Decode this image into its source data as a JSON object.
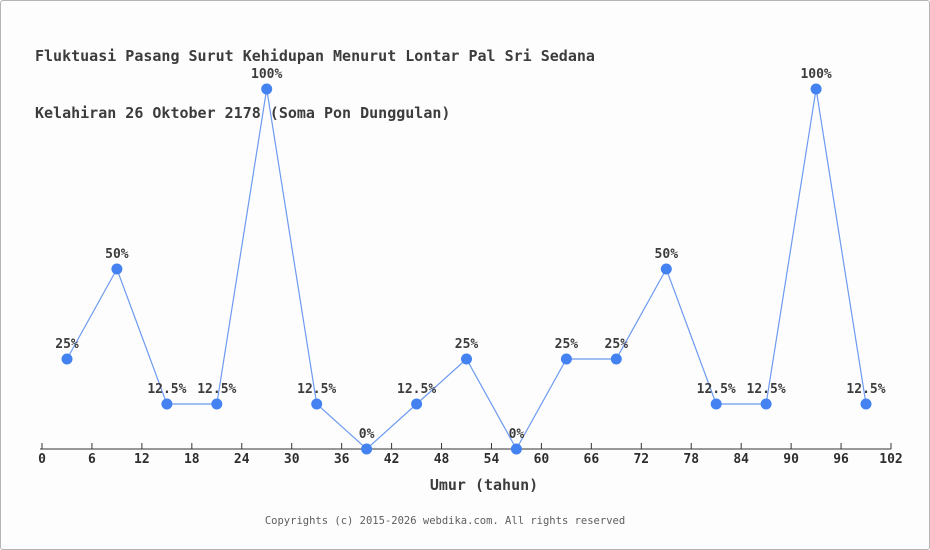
{
  "title": {
    "line1": "Fluktuasi Pasang Surut Kehidupan Menurut Lontar Pal Sri Sedana",
    "line2": "Kelahiran 26 Oktober 2178 (Soma Pon Dunggulan)"
  },
  "footer": {
    "copyright": "Copyrights (c) 2015-2026 webdika.com. All rights reserved"
  },
  "colors": {
    "marker": "#4382f0",
    "line": "#6d9af0",
    "axis": "#333333",
    "tick_text": "#2e2e2e",
    "label_text": "#3c3c3c",
    "title_text": "#3c3c3c",
    "footer_text": "#5e5e5e",
    "background": "#fdfdfd",
    "border": "#b5b5b5"
  },
  "chart_data": {
    "type": "line",
    "title": "Fluktuasi Pasang Surut Kehidupan Menurut Lontar Pal Sri Sedana — Kelahiran 26 Oktober 2178 (Soma Pon Dunggulan)",
    "xlabel": "Umur (tahun)",
    "ylabel": "",
    "x": [
      3,
      9,
      15,
      21,
      27,
      33,
      39,
      45,
      51,
      57,
      63,
      69,
      75,
      81,
      87,
      93,
      99
    ],
    "values": [
      25,
      50,
      12.5,
      12.5,
      100,
      12.5,
      0,
      12.5,
      25,
      0,
      25,
      25,
      50,
      12.5,
      12.5,
      100,
      12.5
    ],
    "point_labels": [
      "25%",
      "50%",
      "12.5%",
      "12.5%",
      "100%",
      "12.5%",
      "0%",
      "12.5%",
      "25%",
      "0%",
      "25%",
      "25%",
      "50%",
      "12.5%",
      "12.5%",
      "100%",
      "12.5%"
    ],
    "x_ticks": [
      0,
      6,
      12,
      18,
      24,
      30,
      36,
      42,
      48,
      54,
      60,
      66,
      72,
      78,
      84,
      90,
      96,
      102
    ],
    "xlim": [
      0,
      102
    ],
    "ylim": [
      0,
      100
    ],
    "grid": false,
    "legend": "none",
    "marker_shape": "circle"
  }
}
